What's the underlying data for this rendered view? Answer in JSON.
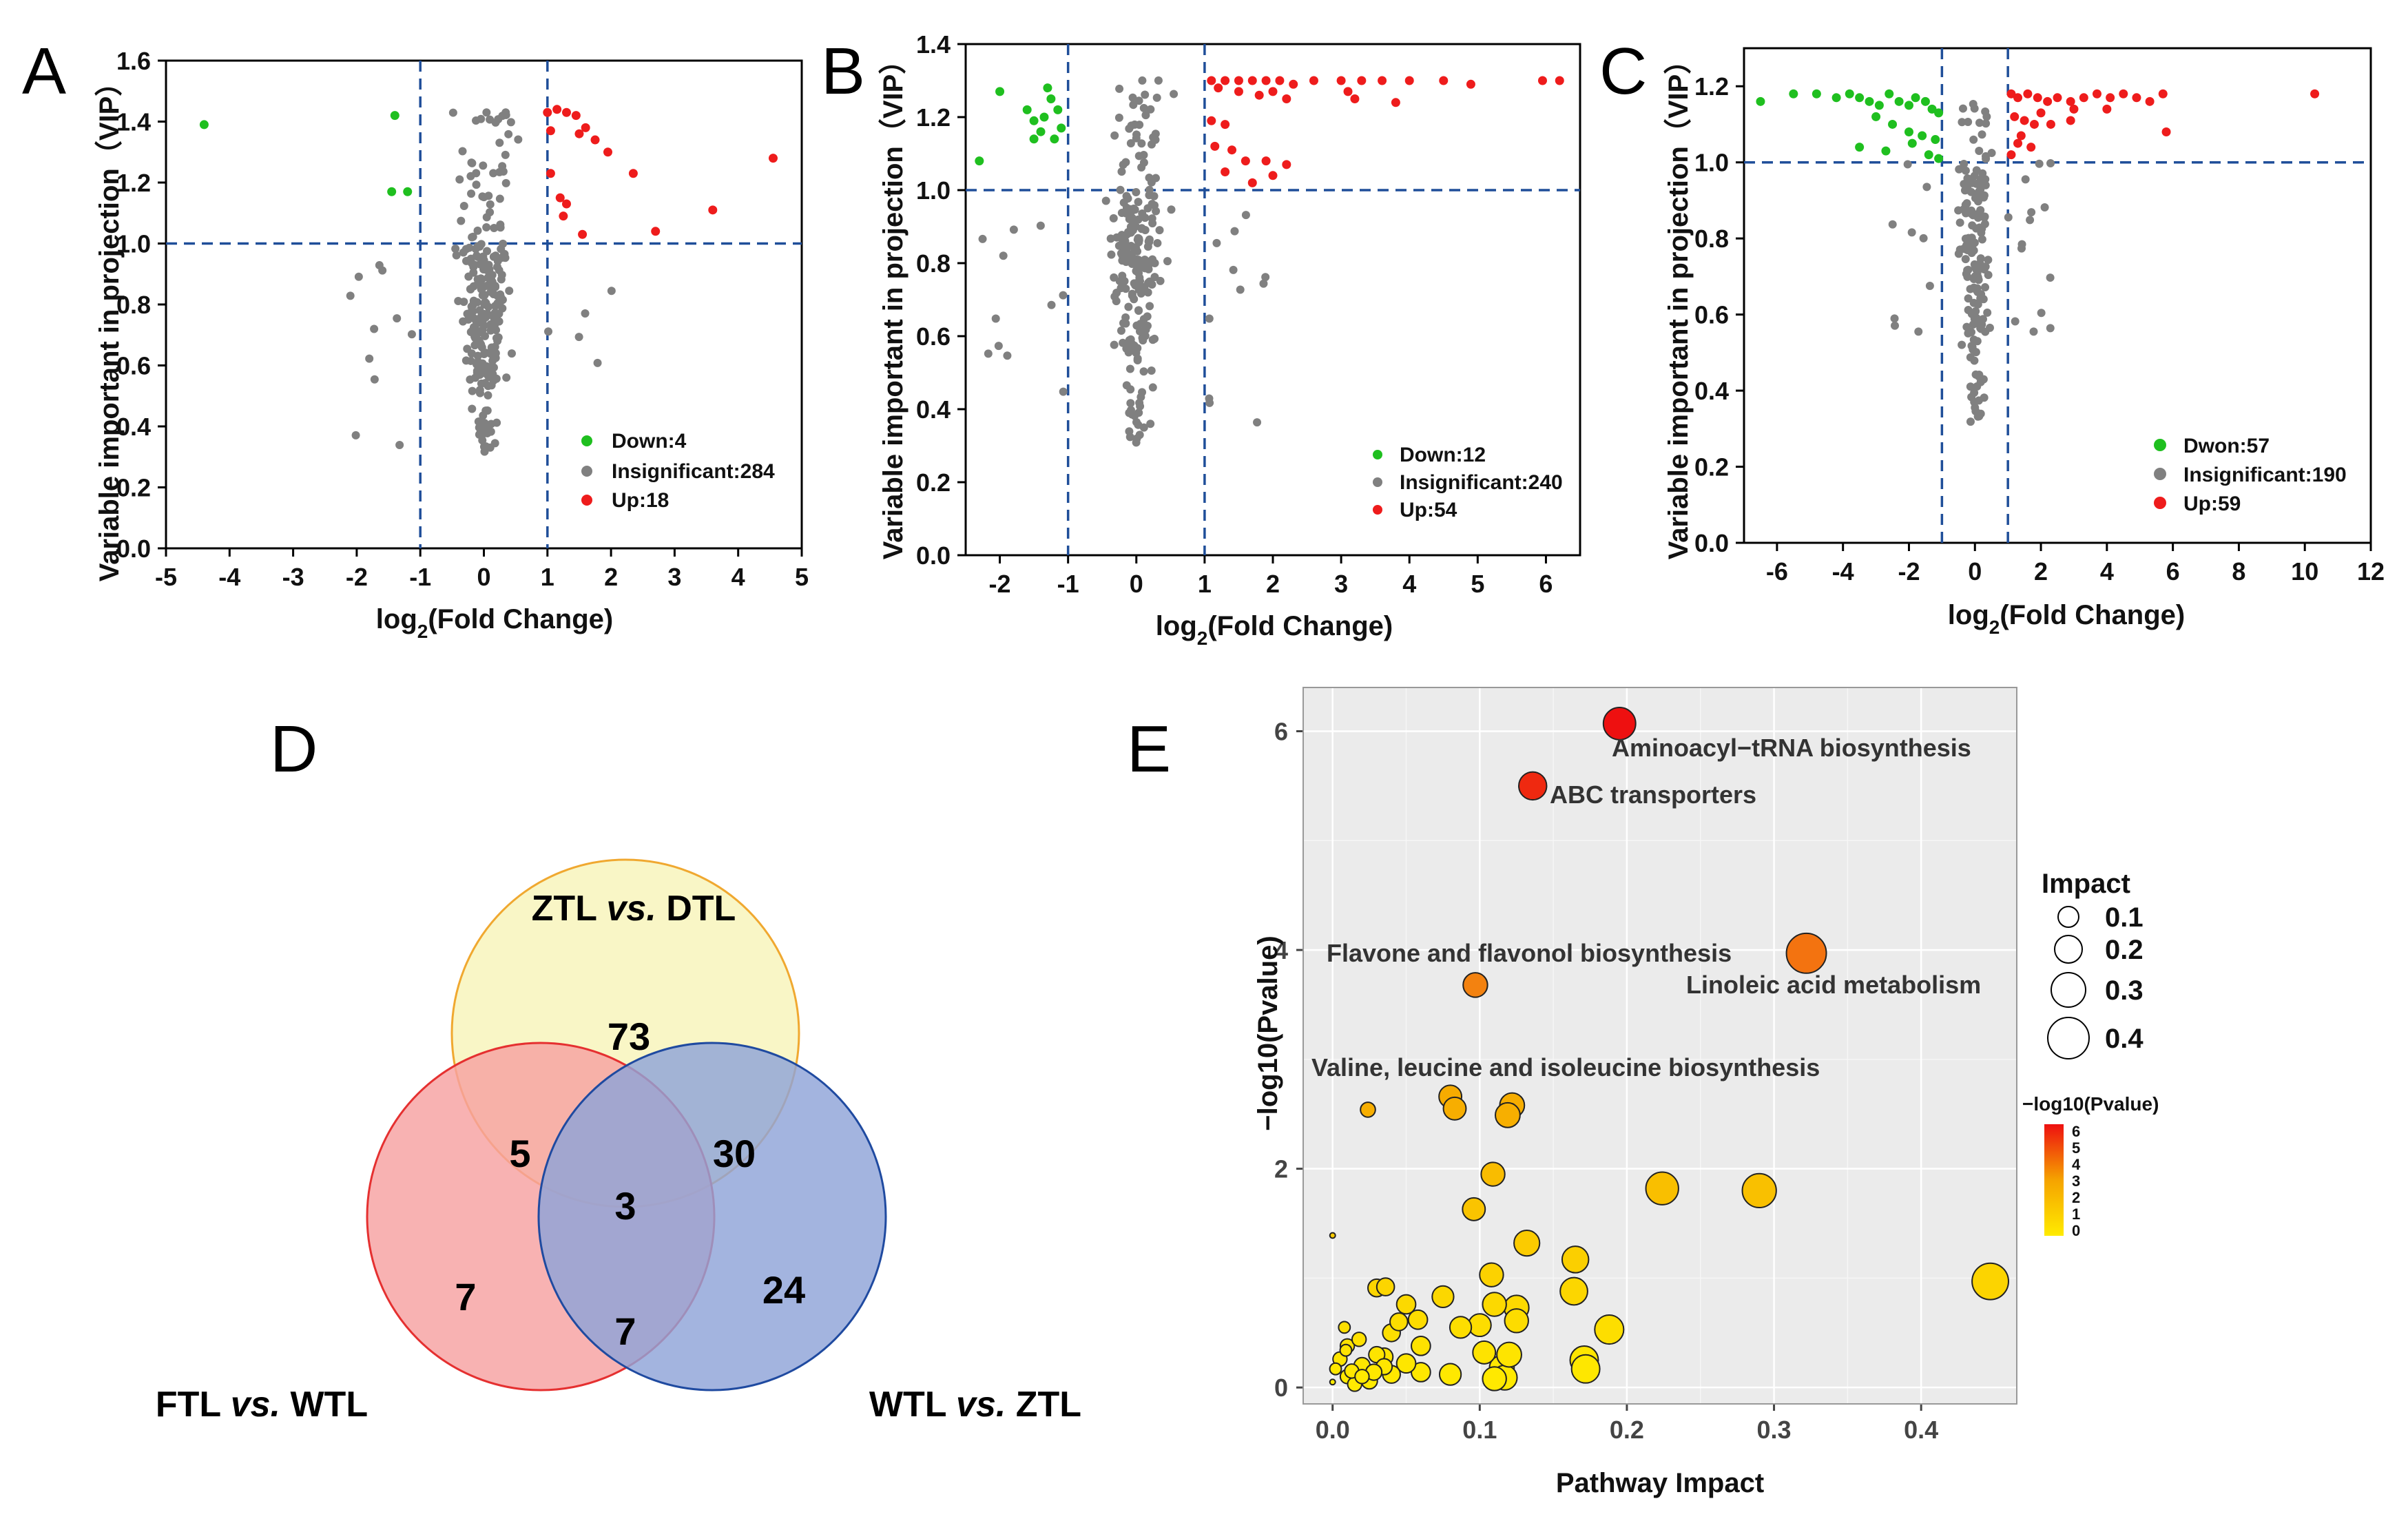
{
  "colors": {
    "down": "#1fbf1f",
    "insignificant": "#808080",
    "up": "#ee1c1c",
    "threshold": "#1f4e99",
    "venn_ztl": "#f7f2b0",
    "venn_ftl": "#f7a1a1",
    "venn_wtl": "#8fa4d8"
  },
  "panels": {
    "A": {
      "label": "A",
      "xlabel_main": "log",
      "xlabel_sub": "2",
      "xlabel_rest": "(Fold Change)",
      "ylabel": "Variable important in projection（VIP）",
      "xticks": [
        "-5",
        "-4",
        "-3",
        "-2",
        "-1",
        "0",
        "1",
        "2",
        "3",
        "4",
        "5"
      ],
      "yticks": [
        "0.0",
        "0.2",
        "0.4",
        "0.6",
        "0.8",
        "1.0",
        "1.2",
        "1.4",
        "1.6"
      ],
      "legend": [
        "Down:4",
        "Insignificant:284",
        "Up:18"
      ]
    },
    "B": {
      "label": "B",
      "xlabel_main": "log",
      "xlabel_sub": "2",
      "xlabel_rest": "(Fold Change)",
      "ylabel": "Variable important in projection（VIP）",
      "xticks": [
        "-2",
        "-1",
        "0",
        "1",
        "2",
        "3",
        "4",
        "5",
        "6"
      ],
      "yticks": [
        "0.0",
        "0.2",
        "0.4",
        "0.6",
        "0.8",
        "1.0",
        "1.2",
        "1.4"
      ],
      "legend": [
        "Down:12",
        "Insignificant:240",
        "Up:54"
      ]
    },
    "C": {
      "label": "C",
      "xlabel_main": "log",
      "xlabel_sub": "2",
      "xlabel_rest": "(Fold Change)",
      "ylabel": "Variable important in projection（VIP）",
      "xticks": [
        "-6",
        "-4",
        "-2",
        "0",
        "2",
        "4",
        "6",
        "8",
        "10",
        "12"
      ],
      "yticks": [
        "0.0",
        "0.2",
        "0.4",
        "0.6",
        "0.8",
        "1.0",
        "1.2"
      ],
      "legend": [
        "Dwon:57",
        "Insignificant:190",
        "Up:59"
      ]
    },
    "D": {
      "label": "D",
      "set_ztl": "ZTL",
      "set_ztl_vs": "vs.",
      "set_ztl_b": "DTL",
      "set_ftl": "FTL",
      "set_ftl_vs": "vs.",
      "set_ftl_b": "WTL",
      "set_wtl": "WTL",
      "set_wtl_vs": "vs.",
      "set_wtl_b": "ZTL",
      "counts": {
        "ztl_only": "73",
        "ztl_ftl": "5",
        "ztl_wtl": "30",
        "all": "3",
        "ftl_only": "7",
        "ftl_wtl": "7",
        "wtl_only": "24"
      }
    },
    "E": {
      "label": "E",
      "xlabel": "Pathway Impact",
      "ylabel": "−log10(Pvalue)",
      "xticks": [
        "0.0",
        "0.1",
        "0.2",
        "0.3",
        "0.4"
      ],
      "yticks": [
        "0",
        "2",
        "4",
        "6"
      ],
      "size_legend_title": "Impact",
      "size_legend": [
        "0.1",
        "0.2",
        "0.3",
        "0.4"
      ],
      "color_legend_title": "−log10(Pvalue)",
      "color_legend_ticks": [
        "6",
        "5",
        "4",
        "3",
        "2",
        "1",
        "0"
      ],
      "annotations": [
        "Aminoacyl−tRNA biosynthesis",
        "ABC transporters",
        "Flavone and flavonol biosynthesis",
        "Linoleic acid metabolism",
        "Valine, leucine and isoleucine biosynthesis"
      ]
    }
  },
  "chart_data": [
    {
      "panel": "A",
      "type": "scatter",
      "title": "",
      "xlabel": "log2(Fold Change)",
      "ylabel": "Variable important in projection（VIP）",
      "xlim": [
        -5,
        5
      ],
      "ylim": [
        0,
        1.6
      ],
      "thresholds": {
        "x": [
          -1,
          1
        ],
        "y": 1.0
      },
      "series": [
        {
          "name": "Down",
          "count": 4,
          "points": [
            [
              -4.4,
              1.39
            ],
            [
              -1.4,
              1.42
            ],
            [
              -1.45,
              1.17
            ],
            [
              -1.2,
              1.17
            ]
          ]
        },
        {
          "name": "Up",
          "count": 18,
          "points": [
            [
              1.0,
              1.43
            ],
            [
              1.15,
              1.44
            ],
            [
              1.3,
              1.43
            ],
            [
              1.45,
              1.42
            ],
            [
              1.6,
              1.38
            ],
            [
              1.75,
              1.34
            ],
            [
              1.95,
              1.3
            ],
            [
              2.35,
              1.23
            ],
            [
              4.55,
              1.28
            ],
            [
              1.05,
              1.23
            ],
            [
              1.2,
              1.15
            ],
            [
              1.3,
              1.13
            ],
            [
              1.25,
              1.09
            ],
            [
              1.55,
              1.03
            ],
            [
              2.7,
              1.04
            ],
            [
              3.6,
              1.11
            ],
            [
              1.05,
              1.37
            ],
            [
              1.5,
              1.36
            ]
          ]
        },
        {
          "name": "Insignificant",
          "count": 284
        }
      ]
    },
    {
      "panel": "B",
      "type": "scatter",
      "title": "",
      "xlabel": "log2(Fold Change)",
      "ylabel": "Variable important in projection（VIP）",
      "xlim": [
        -2.5,
        6.5
      ],
      "ylim": [
        0,
        1.4
      ],
      "thresholds": {
        "x": [
          -1,
          1
        ],
        "y": 1.0
      },
      "series": [
        {
          "name": "Down",
          "count": 12,
          "points": [
            [
              -2.3,
              1.08
            ],
            [
              -2.0,
              1.27
            ],
            [
              -1.6,
              1.22
            ],
            [
              -1.5,
              1.19
            ],
            [
              -1.35,
              1.2
            ],
            [
              -1.15,
              1.22
            ],
            [
              -1.5,
              1.14
            ],
            [
              -1.2,
              1.14
            ],
            [
              -1.3,
              1.28
            ],
            [
              -1.1,
              1.17
            ],
            [
              -1.25,
              1.25
            ],
            [
              -1.4,
              1.16
            ]
          ]
        },
        {
          "name": "Up",
          "count": 54,
          "points": [
            [
              1.1,
              1.3
            ],
            [
              1.3,
              1.3
            ],
            [
              1.5,
              1.3
            ],
            [
              1.7,
              1.3
            ],
            [
              1.9,
              1.3
            ],
            [
              2.1,
              1.3
            ],
            [
              2.3,
              1.29
            ],
            [
              2.6,
              1.3
            ],
            [
              3.0,
              1.3
            ],
            [
              3.3,
              1.3
            ],
            [
              3.6,
              1.3
            ],
            [
              4.0,
              1.3
            ],
            [
              4.5,
              1.3
            ],
            [
              4.9,
              1.29
            ],
            [
              5.95,
              1.3
            ],
            [
              6.2,
              1.3
            ],
            [
              1.2,
              1.28
            ],
            [
              1.5,
              1.27
            ],
            [
              1.8,
              1.26
            ],
            [
              2.0,
              1.27
            ],
            [
              2.2,
              1.25
            ],
            [
              3.1,
              1.27
            ],
            [
              3.2,
              1.25
            ],
            [
              3.8,
              1.24
            ],
            [
              1.1,
              1.19
            ],
            [
              1.3,
              1.18
            ],
            [
              1.6,
              1.08
            ],
            [
              1.9,
              1.08
            ],
            [
              2.2,
              1.07
            ],
            [
              2.0,
              1.04
            ],
            [
              1.7,
              1.02
            ],
            [
              1.3,
              1.05
            ],
            [
              1.4,
              1.11
            ],
            [
              1.15,
              1.12
            ]
          ]
        },
        {
          "name": "Insignificant",
          "count": 240
        }
      ]
    },
    {
      "panel": "C",
      "type": "scatter",
      "title": "",
      "xlabel": "log2(Fold Change)",
      "ylabel": "Variable important in projection（VIP）",
      "xlim": [
        -7,
        12
      ],
      "ylim": [
        0,
        1.3
      ],
      "thresholds": {
        "x": [
          -1,
          1
        ],
        "y": 1.0
      },
      "series": [
        {
          "name": "Dwon",
          "count": 57,
          "points": [
            [
              -6.5,
              1.16
            ],
            [
              -5.5,
              1.18
            ],
            [
              -4.8,
              1.18
            ],
            [
              -4.2,
              1.17
            ],
            [
              -3.8,
              1.18
            ],
            [
              -3.5,
              1.17
            ],
            [
              -3.2,
              1.16
            ],
            [
              -2.9,
              1.15
            ],
            [
              -2.6,
              1.18
            ],
            [
              -2.3,
              1.16
            ],
            [
              -2.0,
              1.15
            ],
            [
              -1.8,
              1.17
            ],
            [
              -1.5,
              1.16
            ],
            [
              -1.3,
              1.14
            ],
            [
              -1.1,
              1.13
            ],
            [
              -3.0,
              1.12
            ],
            [
              -2.5,
              1.1
            ],
            [
              -2.0,
              1.08
            ],
            [
              -1.6,
              1.07
            ],
            [
              -1.2,
              1.06
            ],
            [
              -3.5,
              1.04
            ],
            [
              -2.7,
              1.03
            ],
            [
              -1.9,
              1.05
            ],
            [
              -1.4,
              1.02
            ],
            [
              -1.1,
              1.01
            ]
          ]
        },
        {
          "name": "Up",
          "count": 59,
          "points": [
            [
              1.1,
              1.18
            ],
            [
              1.3,
              1.17
            ],
            [
              1.6,
              1.18
            ],
            [
              1.9,
              1.17
            ],
            [
              2.2,
              1.16
            ],
            [
              2.5,
              1.17
            ],
            [
              2.9,
              1.16
            ],
            [
              3.3,
              1.17
            ],
            [
              3.7,
              1.18
            ],
            [
              4.1,
              1.17
            ],
            [
              4.5,
              1.18
            ],
            [
              4.9,
              1.17
            ],
            [
              5.3,
              1.16
            ],
            [
              5.7,
              1.18
            ],
            [
              10.3,
              1.18
            ],
            [
              5.8,
              1.08
            ],
            [
              1.2,
              1.12
            ],
            [
              1.5,
              1.11
            ],
            [
              1.8,
              1.1
            ],
            [
              2.3,
              1.1
            ],
            [
              2.9,
              1.11
            ],
            [
              1.3,
              1.05
            ],
            [
              1.7,
              1.04
            ],
            [
              1.1,
              1.02
            ],
            [
              1.4,
              1.07
            ],
            [
              2.0,
              1.13
            ],
            [
              3.0,
              1.14
            ],
            [
              4.0,
              1.14
            ]
          ]
        },
        {
          "name": "Insignificant",
          "count": 190
        }
      ]
    },
    {
      "panel": "D",
      "type": "venn",
      "sets": [
        "ZTL vs. DTL",
        "FTL vs. WTL",
        "WTL vs. ZTL"
      ],
      "regions": {
        "ZTL vs. DTL only": 73,
        "ZTL vs. DTL & FTL vs. WTL": 5,
        "ZTL vs. DTL & WTL vs. ZTL": 30,
        "all three": 3,
        "FTL vs. WTL only": 7,
        "FTL vs. WTL & WTL vs. ZTL": 7,
        "WTL vs. ZTL only": 24
      }
    },
    {
      "panel": "E",
      "type": "scatter",
      "title": "",
      "xlabel": "Pathway Impact",
      "ylabel": "−log10(Pvalue)",
      "xlim": [
        -0.02,
        0.465
      ],
      "ylim": [
        -0.15,
        6.4
      ],
      "points": [
        {
          "x": 0.195,
          "y": 6.07,
          "impact": 0.195,
          "label": "Aminoacyl−tRNA biosynthesis"
        },
        {
          "x": 0.136,
          "y": 5.5,
          "impact": 0.136,
          "label": "ABC transporters"
        },
        {
          "x": 0.322,
          "y": 3.97,
          "impact": 0.322,
          "label": "Linoleic acid metabolism"
        },
        {
          "x": 0.097,
          "y": 3.68,
          "impact": 0.097,
          "label": "Flavone and flavonol biosynthesis"
        },
        {
          "x": 0.024,
          "y": 2.54,
          "impact": 0.024,
          "label": "Valine, leucine and isoleucine biosynthesis"
        },
        {
          "x": 0.08,
          "y": 2.66,
          "impact": 0.08
        },
        {
          "x": 0.083,
          "y": 2.55,
          "impact": 0.08
        },
        {
          "x": 0.122,
          "y": 2.58,
          "impact": 0.1
        },
        {
          "x": 0.119,
          "y": 2.49,
          "impact": 0.1
        },
        {
          "x": 0.109,
          "y": 1.95,
          "impact": 0.09
        },
        {
          "x": 0.224,
          "y": 1.82,
          "impact": 0.2
        },
        {
          "x": 0.29,
          "y": 1.8,
          "impact": 0.22
        },
        {
          "x": 0.096,
          "y": 1.63,
          "impact": 0.08
        },
        {
          "x": 0.447,
          "y": 0.97,
          "impact": 0.26
        },
        {
          "x": 0.0,
          "y": 1.39,
          "impact": 0.0
        },
        {
          "x": 0.132,
          "y": 1.32,
          "impact": 0.11
        },
        {
          "x": 0.165,
          "y": 1.17,
          "impact": 0.12
        },
        {
          "x": 0.108,
          "y": 1.03,
          "impact": 0.09
        },
        {
          "x": 0.164,
          "y": 0.88,
          "impact": 0.13
        },
        {
          "x": 0.075,
          "y": 0.83,
          "impact": 0.07
        },
        {
          "x": 0.125,
          "y": 0.73,
          "impact": 0.1
        },
        {
          "x": 0.11,
          "y": 0.76,
          "impact": 0.09
        },
        {
          "x": 0.05,
          "y": 0.76,
          "impact": 0.05
        },
        {
          "x": 0.03,
          "y": 0.91,
          "impact": 0.04
        },
        {
          "x": 0.036,
          "y": 0.92,
          "impact": 0.04
        },
        {
          "x": 0.01,
          "y": 0.38,
          "impact": 0.02
        },
        {
          "x": 0.1,
          "y": 0.57,
          "impact": 0.08
        },
        {
          "x": 0.125,
          "y": 0.61,
          "impact": 0.09
        },
        {
          "x": 0.058,
          "y": 0.62,
          "impact": 0.05
        },
        {
          "x": 0.188,
          "y": 0.53,
          "impact": 0.15
        },
        {
          "x": 0.087,
          "y": 0.55,
          "impact": 0.07
        },
        {
          "x": 0.04,
          "y": 0.5,
          "impact": 0.04
        },
        {
          "x": 0.103,
          "y": 0.32,
          "impact": 0.08
        },
        {
          "x": 0.171,
          "y": 0.25,
          "impact": 0.14
        },
        {
          "x": 0.115,
          "y": 0.18,
          "impact": 0.1
        },
        {
          "x": 0.172,
          "y": 0.17,
          "impact": 0.14
        },
        {
          "x": 0.117,
          "y": 0.09,
          "impact": 0.1
        },
        {
          "x": 0.08,
          "y": 0.12,
          "impact": 0.07
        },
        {
          "x": 0.06,
          "y": 0.14,
          "impact": 0.05
        },
        {
          "x": 0.05,
          "y": 0.22,
          "impact": 0.05
        },
        {
          "x": 0.035,
          "y": 0.28,
          "impact": 0.04
        },
        {
          "x": 0.02,
          "y": 0.2,
          "impact": 0.03
        },
        {
          "x": 0.01,
          "y": 0.1,
          "impact": 0.02
        },
        {
          "x": 0.005,
          "y": 0.26,
          "impact": 0.02
        },
        {
          "x": 0.04,
          "y": 0.12,
          "impact": 0.04
        },
        {
          "x": 0.025,
          "y": 0.06,
          "impact": 0.03
        },
        {
          "x": 0.015,
          "y": 0.03,
          "impact": 0.02
        },
        {
          "x": 0.03,
          "y": 0.3,
          "impact": 0.03
        },
        {
          "x": 0.06,
          "y": 0.38,
          "impact": 0.05
        },
        {
          "x": 0.11,
          "y": 0.08,
          "impact": 0.09
        },
        {
          "x": 0.12,
          "y": 0.3,
          "impact": 0.1
        },
        {
          "x": 0.008,
          "y": 0.55,
          "impact": 0.01
        },
        {
          "x": 0.045,
          "y": 0.6,
          "impact": 0.04
        },
        {
          "x": 0.002,
          "y": 0.17,
          "impact": 0.01
        },
        {
          "x": 0.018,
          "y": 0.44,
          "impact": 0.02
        },
        {
          "x": 0.035,
          "y": 0.19,
          "impact": 0.03
        },
        {
          "x": 0.009,
          "y": 0.34,
          "impact": 0.01
        },
        {
          "x": 0.013,
          "y": 0.15,
          "impact": 0.02
        },
        {
          "x": 0.02,
          "y": 0.1,
          "impact": 0.02
        },
        {
          "x": 0.0,
          "y": 0.05,
          "impact": 0.0
        },
        {
          "x": 0.028,
          "y": 0.14,
          "impact": 0.03
        }
      ]
    }
  ]
}
